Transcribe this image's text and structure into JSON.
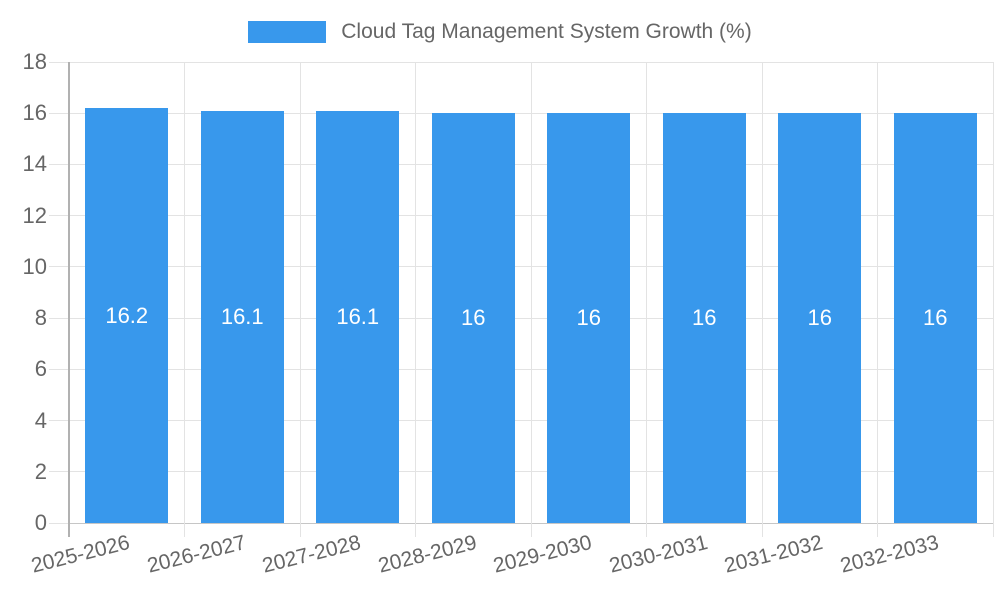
{
  "chart_data": {
    "type": "bar",
    "legend_label": "Cloud Tag Management System Growth (%)",
    "legend_position": "top-center",
    "categories": [
      "2025-2026",
      "2026-2027",
      "2027-2028",
      "2028-2029",
      "2029-2030",
      "2030-2031",
      "2031-2032",
      "2032-2033"
    ],
    "values": [
      16.2,
      16.1,
      16.1,
      16,
      16,
      16,
      16,
      16
    ],
    "value_labels": [
      "16.2",
      "16.1",
      "16.1",
      "16",
      "16",
      "16",
      "16",
      "16"
    ],
    "xlabel": "",
    "ylabel": "",
    "ylim": [
      0,
      18
    ],
    "ytick_step": 2,
    "yticks": [
      0,
      2,
      4,
      6,
      8,
      10,
      12,
      14,
      16,
      18
    ],
    "grid": "on",
    "colors": {
      "bar": "#3898ec",
      "bar_label": "#ffffff",
      "axis_text": "#666666",
      "gridline": "#e3e3e3",
      "y_axis_line": "#b1b1b1",
      "x_axis_line": "#c6c6c6"
    }
  }
}
